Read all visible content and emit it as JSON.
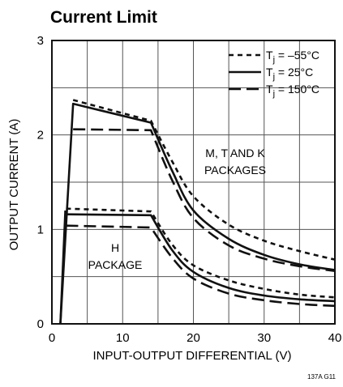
{
  "chart_data": {
    "type": "line",
    "title": "Current Limit",
    "xlabel": "INPUT-OUTPUT DIFFERENTIAL (V)",
    "ylabel": "OUTPUT CURRENT (A)",
    "xlim": [
      0,
      40
    ],
    "ylim": [
      0,
      3
    ],
    "x_ticks": [
      "0",
      "10",
      "20",
      "30",
      "40"
    ],
    "y_ticks": [
      "0",
      "1",
      "2",
      "3"
    ],
    "grid": true,
    "legend_position": "top-right",
    "legend": [
      {
        "base": "T",
        "sub": "j",
        "rest": " = –55°C",
        "style": "short-dash"
      },
      {
        "base": "T",
        "sub": "j",
        "rest": " = 25°C",
        "style": "solid"
      },
      {
        "base": "T",
        "sub": "j",
        "rest": " = 150°C",
        "style": "long-dash"
      }
    ],
    "annotations": {
      "mtk_line1": "M, T AND K",
      "mtk_line2": "PACKAGES",
      "h_line1": "H",
      "h_line2": "PACKAGE"
    },
    "figure_code": "137A G11",
    "series": [
      {
        "group": "M, T AND K PACKAGES",
        "temperature": "–55°C",
        "style": "short-dash",
        "x": [
          3,
          14,
          17,
          20,
          25,
          30,
          35,
          40
        ],
        "y": [
          2.37,
          2.15,
          1.72,
          1.35,
          1.05,
          0.88,
          0.77,
          0.68
        ]
      },
      {
        "group": "M, T AND K PACKAGES",
        "temperature": "25°C",
        "style": "solid",
        "x": [
          1.2,
          3,
          14,
          17,
          20,
          25,
          30,
          35,
          40
        ],
        "y": [
          0,
          2.33,
          2.13,
          1.62,
          1.2,
          0.9,
          0.73,
          0.63,
          0.57
        ]
      },
      {
        "group": "M, T AND K PACKAGES",
        "temperature": "150°C",
        "style": "long-dash",
        "x": [
          3,
          14,
          17,
          20,
          25,
          30,
          35,
          40
        ],
        "y": [
          2.06,
          2.05,
          1.52,
          1.12,
          0.83,
          0.69,
          0.61,
          0.56
        ]
      },
      {
        "group": "H PACKAGE",
        "temperature": "–55°C",
        "style": "short-dash",
        "x": [
          2,
          14,
          17,
          20,
          25,
          30,
          35,
          40
        ],
        "y": [
          1.22,
          1.19,
          0.84,
          0.62,
          0.46,
          0.37,
          0.31,
          0.28
        ]
      },
      {
        "group": "H PACKAGE",
        "temperature": "25°C",
        "style": "solid",
        "x": [
          2,
          14,
          17,
          20,
          25,
          30,
          35,
          40
        ],
        "y": [
          1.16,
          1.15,
          0.78,
          0.55,
          0.38,
          0.3,
          0.26,
          0.24
        ]
      },
      {
        "group": "H PACKAGE",
        "temperature": "150°C",
        "style": "long-dash",
        "x": [
          2,
          14,
          17,
          20,
          25,
          30,
          35,
          40
        ],
        "y": [
          1.04,
          1.02,
          0.7,
          0.48,
          0.32,
          0.25,
          0.21,
          0.19
        ]
      }
    ]
  }
}
